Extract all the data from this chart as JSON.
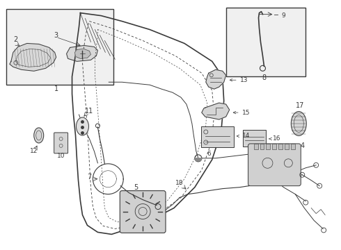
{
  "bg_color": "#ffffff",
  "line_color": "#3a3a3a",
  "fig_width": 4.9,
  "fig_height": 3.6,
  "dpi": 100
}
